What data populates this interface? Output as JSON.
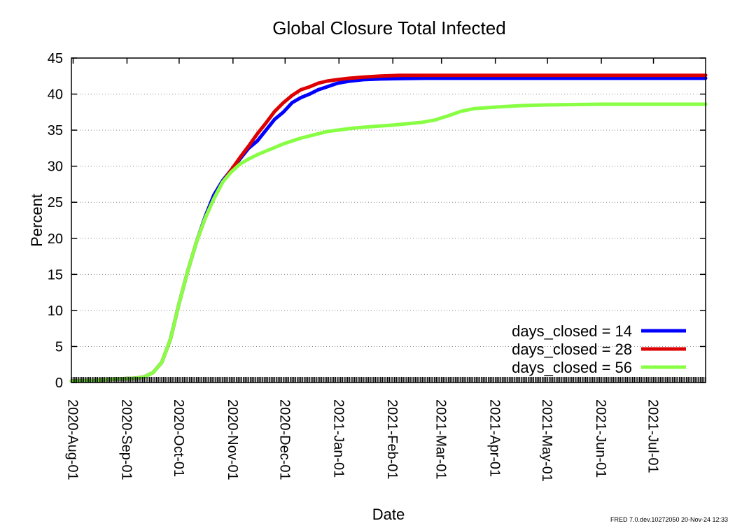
{
  "chart_data": {
    "type": "line",
    "title": "Global Closure Total Infected",
    "xlabel": "Date",
    "ylabel": "Percent",
    "ylim": [
      0,
      45
    ],
    "yticks": [
      0,
      5,
      10,
      15,
      20,
      25,
      30,
      35,
      40,
      45
    ],
    "xlim": [
      "2020-07-31",
      "2021-07-31"
    ],
    "xticks": [
      "2020-Aug-01",
      "2020-Sep-01",
      "2020-Oct-01",
      "2020-Nov-01",
      "2020-Dec-01",
      "2021-Jan-01",
      "2021-Feb-01",
      "2021-Mar-01",
      "2021-Apr-01",
      "2021-May-01",
      "2021-Jun-01",
      "2021-Jul-01"
    ],
    "grid": true,
    "legend_position": "bottom-right",
    "series": [
      {
        "name": "days_closed = 14",
        "color": "#0000ff",
        "x": [
          "2020-07-31",
          "2020-08-14",
          "2020-08-28",
          "2020-09-06",
          "2020-09-11",
          "2020-09-16",
          "2020-09-21",
          "2020-09-26",
          "2020-10-01",
          "2020-10-06",
          "2020-10-11",
          "2020-10-16",
          "2020-10-21",
          "2020-10-26",
          "2020-10-31",
          "2020-11-05",
          "2020-11-10",
          "2020-11-15",
          "2020-11-20",
          "2020-11-25",
          "2020-11-30",
          "2020-12-05",
          "2020-12-10",
          "2020-12-15",
          "2020-12-20",
          "2020-12-25",
          "2020-12-31",
          "2021-01-07",
          "2021-01-15",
          "2021-01-25",
          "2021-02-05",
          "2021-02-20",
          "2021-03-15",
          "2021-04-15",
          "2021-05-15",
          "2021-06-15",
          "2021-07-31"
        ],
        "y": [
          0.2,
          0.3,
          0.5,
          0.6,
          0.8,
          1.4,
          2.8,
          6.0,
          11.0,
          15.5,
          19.5,
          23.0,
          26.0,
          28.0,
          29.5,
          31.0,
          32.5,
          33.5,
          35.0,
          36.5,
          37.5,
          38.8,
          39.5,
          40.0,
          40.6,
          41.0,
          41.5,
          41.8,
          42.0,
          42.1,
          42.15,
          42.2,
          42.2,
          42.2,
          42.2,
          42.2,
          42.2
        ]
      },
      {
        "name": "days_closed = 28",
        "color": "#dd0000",
        "x": [
          "2020-07-31",
          "2020-08-14",
          "2020-08-28",
          "2020-09-06",
          "2020-09-11",
          "2020-09-16",
          "2020-09-21",
          "2020-09-26",
          "2020-10-01",
          "2020-10-06",
          "2020-10-11",
          "2020-10-16",
          "2020-10-21",
          "2020-10-26",
          "2020-10-31",
          "2020-11-05",
          "2020-11-10",
          "2020-11-15",
          "2020-11-20",
          "2020-11-25",
          "2020-11-30",
          "2020-12-05",
          "2020-12-10",
          "2020-12-15",
          "2020-12-20",
          "2020-12-25",
          "2020-12-31",
          "2021-01-07",
          "2021-01-15",
          "2021-01-25",
          "2021-02-05",
          "2021-02-20",
          "2021-03-15",
          "2021-04-15",
          "2021-05-15",
          "2021-06-15",
          "2021-07-31"
        ],
        "y": [
          0.2,
          0.3,
          0.5,
          0.6,
          0.8,
          1.4,
          2.8,
          6.0,
          11.0,
          15.5,
          19.5,
          22.8,
          25.5,
          27.8,
          29.5,
          31.2,
          32.8,
          34.5,
          36.0,
          37.6,
          38.8,
          39.8,
          40.6,
          41.0,
          41.5,
          41.8,
          42.0,
          42.2,
          42.35,
          42.5,
          42.6,
          42.6,
          42.6,
          42.6,
          42.6,
          42.6,
          42.6
        ]
      },
      {
        "name": "days_closed = 56",
        "color": "#88ff44",
        "x": [
          "2020-07-31",
          "2020-08-14",
          "2020-08-28",
          "2020-09-06",
          "2020-09-11",
          "2020-09-16",
          "2020-09-21",
          "2020-09-26",
          "2020-10-01",
          "2020-10-06",
          "2020-10-11",
          "2020-10-16",
          "2020-10-21",
          "2020-10-26",
          "2020-10-31",
          "2020-11-05",
          "2020-11-10",
          "2020-11-15",
          "2020-11-20",
          "2020-11-25",
          "2020-11-30",
          "2020-12-05",
          "2020-12-10",
          "2020-12-15",
          "2020-12-20",
          "2020-12-25",
          "2020-12-31",
          "2021-01-10",
          "2021-01-20",
          "2021-02-01",
          "2021-02-10",
          "2021-02-18",
          "2021-02-25",
          "2021-03-05",
          "2021-03-12",
          "2021-03-20",
          "2021-04-01",
          "2021-04-15",
          "2021-05-01",
          "2021-06-01",
          "2021-07-31"
        ],
        "y": [
          0.2,
          0.3,
          0.5,
          0.6,
          0.8,
          1.4,
          2.8,
          6.0,
          11.0,
          15.5,
          19.5,
          22.8,
          25.5,
          27.8,
          29.2,
          30.3,
          31.0,
          31.6,
          32.1,
          32.6,
          33.1,
          33.5,
          33.9,
          34.2,
          34.5,
          34.8,
          35.0,
          35.3,
          35.5,
          35.7,
          35.9,
          36.1,
          36.4,
          37.0,
          37.6,
          38.0,
          38.2,
          38.4,
          38.5,
          38.6,
          38.6
        ]
      }
    ]
  },
  "footer": "FRED 7.0.dev.10272050 20-Nov-24 12:33"
}
